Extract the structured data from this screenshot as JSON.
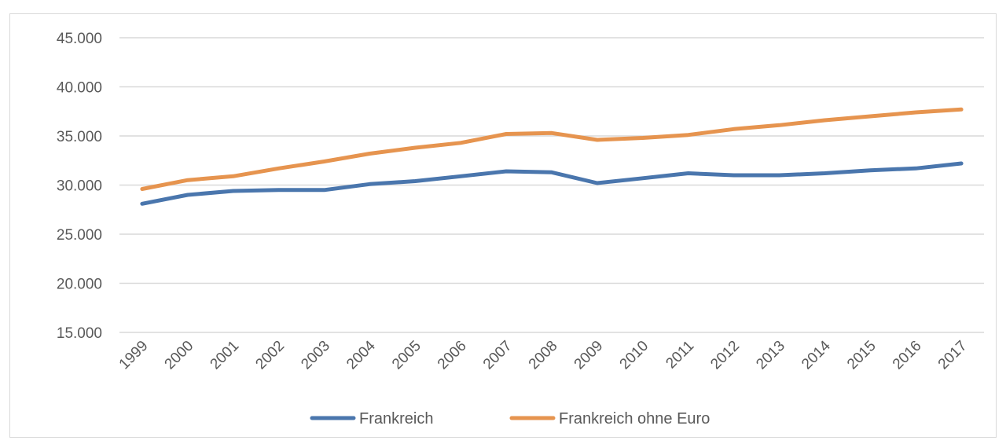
{
  "chart_data": {
    "type": "line",
    "title": "",
    "xlabel": "",
    "ylabel": "",
    "x": [
      "1999",
      "2000",
      "2001",
      "2002",
      "2003",
      "2004",
      "2005",
      "2006",
      "2007",
      "2008",
      "2009",
      "2010",
      "2011",
      "2012",
      "2013",
      "2014",
      "2015",
      "2016",
      "2017"
    ],
    "y_ticks": [
      "15.000",
      "20.000",
      "25.000",
      "30.000",
      "35.000",
      "40.000",
      "45.000"
    ],
    "ylim": [
      15000,
      45000
    ],
    "grid": "horizontal",
    "legend_position": "bottom",
    "series": [
      {
        "name": "Frankreich",
        "color": "#4a76ad",
        "values": [
          28100,
          29000,
          29400,
          29500,
          29500,
          30100,
          30400,
          30900,
          31400,
          31300,
          30200,
          30700,
          31200,
          31000,
          31000,
          31200,
          31500,
          31700,
          32200
        ]
      },
      {
        "name": "Frankreich ohne Euro",
        "color": "#e6944f",
        "values": [
          29600,
          30500,
          30900,
          31700,
          32400,
          33200,
          33800,
          34300,
          35200,
          35300,
          34600,
          34800,
          35100,
          35700,
          36100,
          36600,
          37000,
          37400,
          37700
        ]
      }
    ]
  }
}
